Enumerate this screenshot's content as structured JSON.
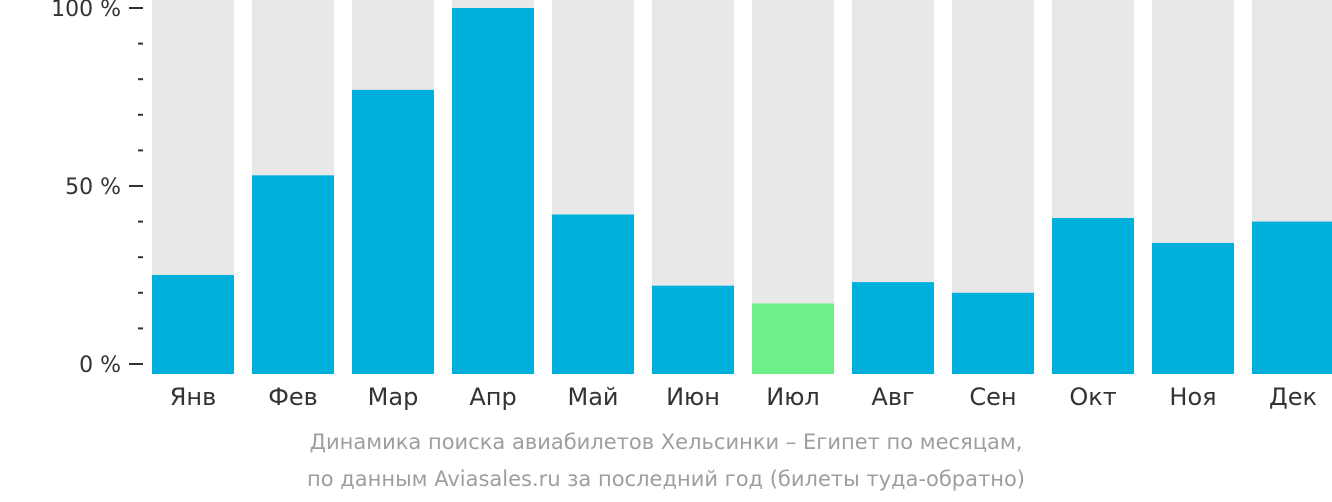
{
  "chart_data": {
    "type": "bar",
    "categories": [
      "Янв",
      "Фев",
      "Мар",
      "Апр",
      "Май",
      "Июн",
      "Июл",
      "Авг",
      "Сен",
      "Окт",
      "Ноя",
      "Дек"
    ],
    "values": [
      25,
      53,
      77,
      100,
      42,
      22,
      17,
      23,
      20,
      41,
      34,
      40
    ],
    "ylim": [
      0,
      100
    ],
    "y_ticks": [
      {
        "value": 0,
        "label": "0 %"
      },
      {
        "value": 50,
        "label": "50 %"
      },
      {
        "value": 100,
        "label": "100 %"
      }
    ],
    "y_minor_step": 10,
    "highlight_category": "Июл",
    "colors": {
      "bar": "#00b0dc",
      "highlight": "#6cf087",
      "background_bar": "#e8e8e8",
      "axis_text": "#333333",
      "caption_text": "#9e9e9e"
    }
  },
  "caption": {
    "line1": "Динамика поиска авиабилетов Хельсинки – Египет по месяцам,",
    "line2": "по данным Aviasales.ru за последний год (билеты туда-обратно)"
  }
}
